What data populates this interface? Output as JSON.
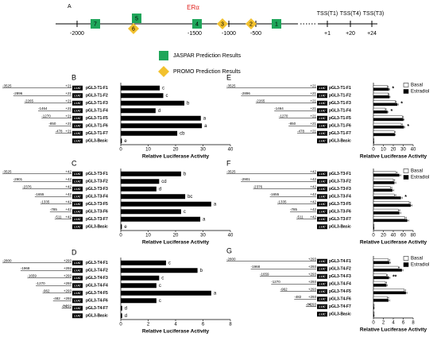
{
  "figure": {
    "panel_a": {
      "label": "A",
      "gene": "ERα",
      "scale": [
        "-2000",
        "-1500",
        "-1000",
        "-500"
      ],
      "tss": [
        "TSS(T1)",
        "TSS(T4)",
        "TSS(T3)"
      ],
      "tss_pos": [
        "+1",
        "+20",
        "+24"
      ],
      "jaspar_sites": [
        "7",
        "5",
        "4",
        "1"
      ],
      "promo_sites": [
        "6",
        "3",
        "2"
      ],
      "legend": [
        "JASPAR Prediction Results",
        "PROMO Prediction Results"
      ]
    }
  },
  "chart_data": [
    {
      "type": "bar",
      "panel": "B",
      "categories": [
        "pGL3-T1-F1",
        "pGL3-T1-F2",
        "pGL3-T1-F3",
        "pGL3-T1-F4",
        "pGL3-T1-F5",
        "pGL3-T1-F6",
        "pGL3-T1-F7",
        "pGL3-Basic"
      ],
      "values": [
        14.2,
        15.5,
        23.2,
        12.7,
        29.2,
        29.6,
        20.6,
        0.4
      ],
      "letters": [
        "c",
        "c",
        "b",
        "d",
        "a",
        "a",
        "cb",
        "e"
      ],
      "construct_starts": [
        -3525,
        -2896,
        -2265,
        -1464,
        -1270,
        -850,
        -478,
        null
      ],
      "construct_end": "+21",
      "reporter": "LUC",
      "color": "#000000",
      "xlabel": "Relative Luciferase Activity",
      "xlim": [
        0,
        40
      ],
      "xticks": [
        0,
        10,
        20,
        30,
        40
      ]
    },
    {
      "type": "bar",
      "panel": "C",
      "categories": [
        "pGL3-T3-F1",
        "pGL3-T3-F2",
        "pGL3-T3-F3",
        "pGL3-T3-F4",
        "pGL3-T3-F5",
        "pGL3-T3-F6",
        "pGL3-T3-F7",
        "pGL3-Basic"
      ],
      "values": [
        22,
        14,
        13,
        23.5,
        33,
        22,
        29,
        0.4
      ],
      "letters": [
        "b",
        "cd",
        "d",
        "bc",
        "a",
        "c",
        "a",
        "e"
      ],
      "construct_starts": [
        -3525,
        -2901,
        -2376,
        -1655,
        -1335,
        -785,
        -511,
        null
      ],
      "construct_end": "+42",
      "reporter": "LUC",
      "color": "#000000",
      "xlabel": "Relative Luciferase Activity",
      "xlim": [
        0,
        40
      ],
      "xticks": [
        0,
        10,
        20,
        30,
        40
      ]
    },
    {
      "type": "bar",
      "panel": "D",
      "categories": [
        "pGL3-T4-F1",
        "pGL3-T4-F2",
        "pGL3-T4-F3",
        "pGL3-T4-F4",
        "pGL3-T4-F5",
        "pGL3-T4-F6",
        "pGL3-T4-F7",
        "pGL3-Basic"
      ],
      "values": [
        3.3,
        5.6,
        2.8,
        2.6,
        6.6,
        2.6,
        0.1,
        0.1
      ],
      "letters": [
        "c",
        "b",
        "c",
        "c",
        "a",
        "c",
        "d",
        "d"
      ],
      "construct_starts": [
        -2800,
        -1968,
        -1659,
        -1270,
        -962,
        -482,
        -84,
        null
      ],
      "construct_end": "+293",
      "reporter": "LUC",
      "color": "#000000",
      "xlabel": "Relative Luciferase Activity",
      "xlim": [
        0,
        8
      ],
      "xticks": [
        0,
        2,
        4,
        6,
        8
      ]
    },
    {
      "type": "grouped_bar",
      "panel": "E",
      "categories": [
        "pGL3-T1-F1",
        "pGL3-T1-F2",
        "pGL3-T1-F3",
        "pGL3-T1-F4",
        "pGL3-T1-F5",
        "pGL3-T1-F6",
        "pGL3-T1-F7",
        "pGL3-Basic"
      ],
      "series": [
        {
          "name": "Basal",
          "color": "#ffffff",
          "values": [
            14,
            15,
            22,
            12,
            29,
            28,
            21,
            0.4
          ],
          "errors": [
            0.8,
            0.8,
            1,
            0.8,
            1,
            1,
            0.8,
            0.1
          ]
        },
        {
          "name": "Estradiol",
          "color": "#000000",
          "values": [
            15.5,
            16,
            24,
            14,
            30,
            30.5,
            21.5,
            0.4
          ],
          "errors": [
            0.8,
            0.8,
            1,
            0.8,
            1,
            1,
            0.8,
            0.1
          ]
        }
      ],
      "significance": [
        "*",
        null,
        "*",
        "*",
        null,
        "*",
        null,
        null
      ],
      "construct_starts": [
        -3525,
        -2896,
        -2265,
        -1464,
        -1270,
        -850,
        -478,
        null
      ],
      "construct_end": "+21",
      "reporter": "LUC",
      "xlabel": "Relative Luciferase Activity",
      "xlim": [
        0,
        40
      ],
      "xticks": [
        0,
        10,
        20,
        30,
        40
      ]
    },
    {
      "type": "grouped_bar",
      "panel": "F",
      "categories": [
        "pGL3-T3-F1",
        "pGL3-T3-F2",
        "pGL3-T3-F3",
        "pGL3-T3-F4",
        "pGL3-T3-F5",
        "pGL3-T3-F6",
        "pGL3-T3-F7",
        "pGL3-Basic"
      ],
      "series": [
        {
          "name": "Basal",
          "color": "#ffffff",
          "values": [
            45,
            40,
            34,
            42,
            72,
            50,
            63,
            1
          ],
          "errors": [
            3,
            3,
            3,
            3,
            3,
            3,
            3,
            0.3
          ]
        },
        {
          "name": "Estradiol",
          "color": "#000000",
          "values": [
            52,
            42,
            38,
            55,
            75,
            52,
            68,
            1
          ],
          "errors": [
            3,
            3,
            3,
            3,
            3,
            3,
            3,
            0.3
          ]
        }
      ],
      "significance": [
        null,
        null,
        null,
        "*",
        null,
        null,
        null,
        null
      ],
      "construct_starts": [
        -3525,
        -2901,
        -2376,
        -1655,
        -1335,
        -785,
        -511,
        null
      ],
      "construct_end": "+42",
      "reporter": "LUC",
      "xlabel": "Relative Luciferase Activity",
      "xlim": [
        0,
        80
      ],
      "xticks": [
        0,
        20,
        40,
        60,
        80
      ]
    },
    {
      "type": "grouped_bar",
      "panel": "G",
      "categories": [
        "pGL3-T4-F1",
        "pGL3-T4-F2",
        "pGL3-T4-F3",
        "pGL3-T4-F4",
        "pGL3-T4-F5",
        "pGL3-T4-F6",
        "pGL3-T4-F7",
        "pGL3-Basic"
      ],
      "series": [
        {
          "name": "Basal",
          "color": "#ffffff",
          "values": [
            3.0,
            5.0,
            2.6,
            2.4,
            6.2,
            2.8,
            0.1,
            0.1
          ],
          "errors": [
            0.25,
            0.25,
            0.25,
            0.25,
            0.25,
            0.25,
            0.05,
            0.05
          ]
        },
        {
          "name": "Estradiol",
          "color": "#000000",
          "values": [
            3.2,
            5.7,
            3.1,
            2.6,
            6.5,
            3.0,
            0.1,
            0.1
          ],
          "errors": [
            0.25,
            0.25,
            0.25,
            0.25,
            0.25,
            0.25,
            0.05,
            0.05
          ]
        }
      ],
      "significance": [
        null,
        null,
        "**",
        null,
        null,
        null,
        null,
        null
      ],
      "construct_starts": [
        -2800,
        -1968,
        -1659,
        -1270,
        -962,
        -482,
        -84,
        null
      ],
      "construct_end": "+293",
      "reporter": "LUC",
      "xlabel": "Relative Luciferase Activity",
      "xlim": [
        0,
        8
      ],
      "xticks": [
        0,
        2,
        4,
        6,
        8
      ]
    }
  ]
}
